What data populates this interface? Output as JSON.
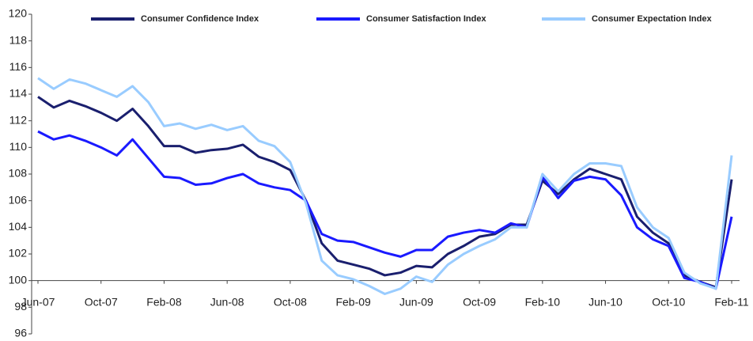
{
  "chart_data": {
    "type": "line",
    "categories": [
      "Jun-07",
      null,
      null,
      null,
      "Oct-07",
      null,
      null,
      null,
      "Feb-08",
      null,
      null,
      null,
      "Jun-08",
      null,
      null,
      null,
      "Oct-08",
      null,
      null,
      null,
      "Feb-09",
      null,
      null,
      null,
      "Jun-09",
      null,
      null,
      null,
      "Oct-09",
      null,
      null,
      null,
      "Feb-10",
      null,
      null,
      null,
      "Jun-10",
      null,
      null,
      null,
      "Oct-10",
      null,
      null,
      null,
      "Feb-11"
    ],
    "series": [
      {
        "name": "Consumer Confidence Index",
        "color": "#1a1f6e",
        "values": [
          113.8,
          113.0,
          113.5,
          113.1,
          112.6,
          112.0,
          112.9,
          111.6,
          110.1,
          110.1,
          109.6,
          109.8,
          109.9,
          110.2,
          109.3,
          108.9,
          108.3,
          106.0,
          102.8,
          101.5,
          101.2,
          100.9,
          100.4,
          100.6,
          101.1,
          101.0,
          102.0,
          102.6,
          103.3,
          103.5,
          104.2,
          104.2,
          107.5,
          106.5,
          107.6,
          108.4,
          108.0,
          107.6,
          104.8,
          103.6,
          102.8,
          100.4,
          99.9,
          99.5,
          107.6
        ]
      },
      {
        "name": "Consumer Satisfaction Index",
        "color": "#1a1aff",
        "values": [
          111.2,
          110.6,
          110.9,
          110.5,
          110.0,
          109.4,
          110.6,
          109.2,
          107.8,
          107.7,
          107.2,
          107.3,
          107.7,
          108.0,
          107.3,
          107.0,
          106.8,
          106.0,
          103.5,
          103.0,
          102.9,
          102.5,
          102.1,
          101.8,
          102.3,
          102.3,
          103.3,
          103.6,
          103.8,
          103.6,
          104.3,
          104.0,
          107.8,
          106.2,
          107.5,
          107.8,
          107.6,
          106.4,
          104.0,
          103.1,
          102.6,
          100.2,
          99.9,
          99.4,
          104.8
        ]
      },
      {
        "name": "Consumer Expectation Index",
        "color": "#99ccff",
        "values": [
          115.2,
          114.4,
          115.1,
          114.8,
          114.3,
          113.8,
          114.6,
          113.4,
          111.6,
          111.8,
          111.4,
          111.7,
          111.3,
          111.6,
          110.5,
          110.1,
          108.9,
          105.8,
          101.5,
          100.4,
          100.1,
          99.6,
          99.0,
          99.4,
          100.3,
          99.9,
          101.2,
          102.0,
          102.6,
          103.1,
          104.0,
          104.0,
          108.0,
          106.7,
          108.0,
          108.8,
          108.8,
          108.6,
          105.5,
          104.0,
          103.2,
          100.6,
          99.8,
          99.4,
          109.4
        ]
      }
    ],
    "ylim": [
      96,
      120
    ],
    "yticks": [
      96,
      98,
      100,
      102,
      104,
      106,
      108,
      110,
      112,
      114,
      116,
      118,
      120
    ],
    "legend": "top"
  }
}
